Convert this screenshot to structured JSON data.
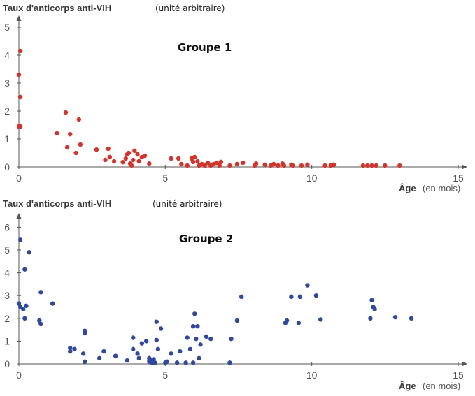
{
  "chart_data": [
    {
      "type": "scatter",
      "title": "Groupe 1",
      "ylabel": "Taux d'anticorps anti-VIH",
      "ylabel_unit": "(unité arbitraire)",
      "xlabel": "Âge",
      "xlabel_unit": "(en mois)",
      "xlim": [
        0,
        15
      ],
      "ylim": [
        0,
        5
      ],
      "xticks": [
        "0",
        "5",
        "10",
        "15"
      ],
      "yticks": [
        "0",
        "1",
        "2",
        "3",
        "4",
        "5"
      ],
      "color": "#d2352b",
      "points": [
        [
          0.05,
          4.15
        ],
        [
          0.0,
          3.3
        ],
        [
          0.05,
          2.5
        ],
        [
          0.0,
          1.45
        ],
        [
          0.05,
          1.45
        ],
        [
          1.3,
          1.2
        ],
        [
          1.6,
          1.95
        ],
        [
          1.75,
          1.17
        ],
        [
          2.05,
          1.7
        ],
        [
          1.65,
          0.7
        ],
        [
          1.95,
          0.5
        ],
        [
          2.1,
          0.8
        ],
        [
          2.65,
          0.62
        ],
        [
          2.95,
          0.25
        ],
        [
          3.05,
          0.65
        ],
        [
          3.1,
          0.35
        ],
        [
          3.25,
          0.2
        ],
        [
          3.55,
          0.17
        ],
        [
          3.65,
          0.3
        ],
        [
          3.7,
          0.45
        ],
        [
          3.75,
          0.5
        ],
        [
          3.8,
          0.12
        ],
        [
          3.85,
          0.05
        ],
        [
          3.9,
          0.25
        ],
        [
          3.95,
          0.58
        ],
        [
          4.05,
          0.45
        ],
        [
          4.1,
          0.2
        ],
        [
          4.2,
          0.35
        ],
        [
          4.3,
          0.4
        ],
        [
          4.45,
          0.12
        ],
        [
          5.2,
          0.3
        ],
        [
          5.45,
          0.3
        ],
        [
          5.55,
          0.1
        ],
        [
          5.75,
          0.05
        ],
        [
          5.9,
          0.3
        ],
        [
          5.95,
          0.18
        ],
        [
          6.0,
          0.35
        ],
        [
          6.1,
          0.2
        ],
        [
          6.15,
          0.05
        ],
        [
          6.25,
          0.1
        ],
        [
          6.35,
          0.05
        ],
        [
          6.45,
          0.15
        ],
        [
          6.55,
          0.05
        ],
        [
          6.65,
          0.1
        ],
        [
          6.75,
          0.15
        ],
        [
          6.85,
          0.05
        ],
        [
          6.9,
          0.18
        ],
        [
          7.2,
          0.05
        ],
        [
          7.45,
          0.1
        ],
        [
          7.65,
          0.15
        ],
        [
          8.05,
          0.05
        ],
        [
          8.1,
          0.12
        ],
        [
          8.4,
          0.08
        ],
        [
          8.6,
          0.05
        ],
        [
          8.7,
          0.1
        ],
        [
          8.85,
          0.05
        ],
        [
          9.0,
          0.12
        ],
        [
          9.05,
          0.05
        ],
        [
          9.3,
          0.08
        ],
        [
          9.35,
          0.05
        ],
        [
          9.65,
          0.05
        ],
        [
          9.85,
          0.08
        ],
        [
          10.45,
          0.05
        ],
        [
          10.65,
          0.05
        ],
        [
          10.75,
          0.08
        ],
        [
          11.75,
          0.05
        ],
        [
          11.9,
          0.05
        ],
        [
          12.05,
          0.05
        ],
        [
          12.2,
          0.05
        ],
        [
          12.5,
          0.05
        ],
        [
          13.0,
          0.05
        ]
      ]
    },
    {
      "type": "scatter",
      "title": "Groupe 2",
      "ylabel": "Taux d'anticorps anti-VIH",
      "ylabel_unit": "(unité arbitraire)",
      "xlabel": "Âge",
      "xlabel_unit": "(en mois)",
      "xlim": [
        0,
        15
      ],
      "ylim": [
        0,
        6
      ],
      "xticks": [
        "0",
        "5",
        "10",
        "15"
      ],
      "yticks": [
        "0",
        "1",
        "2",
        "3",
        "4",
        "5",
        "6"
      ],
      "color": "#2f4a9c",
      "points": [
        [
          0.05,
          5.45
        ],
        [
          0.35,
          4.9
        ],
        [
          0.2,
          4.15
        ],
        [
          0.0,
          2.65
        ],
        [
          0.05,
          2.5
        ],
        [
          0.15,
          2.4
        ],
        [
          0.25,
          2.55
        ],
        [
          0.2,
          2.0
        ],
        [
          0.75,
          3.15
        ],
        [
          1.15,
          2.65
        ],
        [
          0.7,
          1.9
        ],
        [
          0.75,
          1.75
        ],
        [
          1.75,
          0.7
        ],
        [
          1.75,
          0.55
        ],
        [
          1.9,
          0.65
        ],
        [
          2.25,
          1.35
        ],
        [
          2.25,
          1.45
        ],
        [
          2.2,
          0.45
        ],
        [
          2.25,
          0.1
        ],
        [
          2.75,
          0.25
        ],
        [
          2.9,
          0.55
        ],
        [
          3.3,
          0.35
        ],
        [
          3.7,
          0.15
        ],
        [
          3.9,
          1.15
        ],
        [
          3.9,
          0.65
        ],
        [
          4.05,
          0.45
        ],
        [
          4.1,
          0.25
        ],
        [
          4.2,
          0.9
        ],
        [
          4.35,
          1.0
        ],
        [
          4.45,
          0.25
        ],
        [
          4.45,
          0.1
        ],
        [
          4.5,
          0.15
        ],
        [
          4.55,
          0.05
        ],
        [
          4.6,
          0.2
        ],
        [
          4.65,
          0.05
        ],
        [
          4.7,
          1.85
        ],
        [
          4.75,
          0.65
        ],
        [
          4.85,
          1.55
        ],
        [
          4.7,
          1.05
        ],
        [
          5.0,
          0.05
        ],
        [
          5.05,
          0.1
        ],
        [
          5.2,
          0.45
        ],
        [
          5.4,
          0.05
        ],
        [
          5.5,
          0.55
        ],
        [
          5.7,
          0.05
        ],
        [
          5.75,
          1.15
        ],
        [
          5.85,
          0.65
        ],
        [
          5.95,
          1.65
        ],
        [
          5.95,
          0.05
        ],
        [
          6.0,
          2.2
        ],
        [
          6.05,
          1.1
        ],
        [
          6.1,
          1.65
        ],
        [
          6.15,
          0.25
        ],
        [
          6.2,
          0.85
        ],
        [
          6.4,
          1.2
        ],
        [
          6.55,
          1.1
        ],
        [
          7.2,
          0.05
        ],
        [
          7.25,
          1.1
        ],
        [
          7.45,
          1.9
        ],
        [
          7.6,
          2.95
        ],
        [
          9.1,
          1.8
        ],
        [
          9.15,
          1.9
        ],
        [
          9.3,
          2.95
        ],
        [
          9.55,
          1.8
        ],
        [
          9.6,
          2.95
        ],
        [
          9.85,
          3.45
        ],
        [
          10.15,
          3.0
        ],
        [
          10.3,
          1.95
        ],
        [
          12.0,
          2.0
        ],
        [
          12.05,
          2.8
        ],
        [
          12.1,
          2.5
        ],
        [
          12.15,
          2.4
        ],
        [
          12.85,
          2.05
        ],
        [
          13.4,
          2.0
        ]
      ]
    }
  ]
}
